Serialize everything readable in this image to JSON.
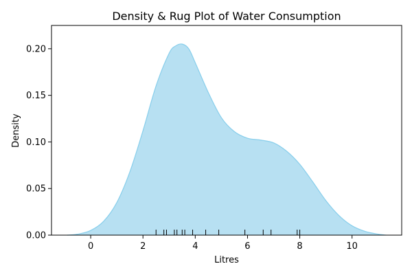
{
  "chart_data": {
    "type": "area",
    "title": "Density & Rug Plot of Water Consumption",
    "xlabel": "Litres",
    "ylabel": "Density",
    "xlim": [
      -1.5,
      11.9
    ],
    "ylim": [
      0,
      0.225
    ],
    "xticks": [
      0,
      2,
      4,
      6,
      8,
      10
    ],
    "xtick_labels": [
      "0",
      "2",
      "4",
      "6",
      "8",
      "10"
    ],
    "yticks": [
      0.0,
      0.05,
      0.1,
      0.15,
      0.2
    ],
    "ytick_labels": [
      "0.00",
      "0.05",
      "0.10",
      "0.15",
      "0.20"
    ],
    "grid": false,
    "fill_color": "#b7e0f2",
    "line_color": "#87ceeb",
    "rug_color": "#000000",
    "density": {
      "x": [
        -0.9,
        -0.5,
        0.0,
        0.5,
        1.0,
        1.5,
        2.0,
        2.5,
        3.0,
        3.25,
        3.5,
        3.75,
        4.0,
        4.5,
        5.0,
        5.5,
        6.0,
        6.5,
        7.0,
        7.5,
        8.0,
        8.5,
        9.0,
        9.5,
        10.0,
        10.5,
        11.0,
        11.3
      ],
      "y": [
        0.0,
        0.001,
        0.005,
        0.015,
        0.035,
        0.068,
        0.112,
        0.16,
        0.195,
        0.203,
        0.205,
        0.2,
        0.185,
        0.153,
        0.126,
        0.111,
        0.104,
        0.102,
        0.099,
        0.09,
        0.076,
        0.057,
        0.037,
        0.021,
        0.01,
        0.004,
        0.001,
        0.0
      ]
    },
    "rug": [
      2.5,
      2.8,
      2.9,
      3.2,
      3.3,
      3.5,
      3.6,
      3.9,
      4.4,
      4.9,
      5.9,
      6.6,
      6.9,
      7.9,
      8.0
    ]
  }
}
